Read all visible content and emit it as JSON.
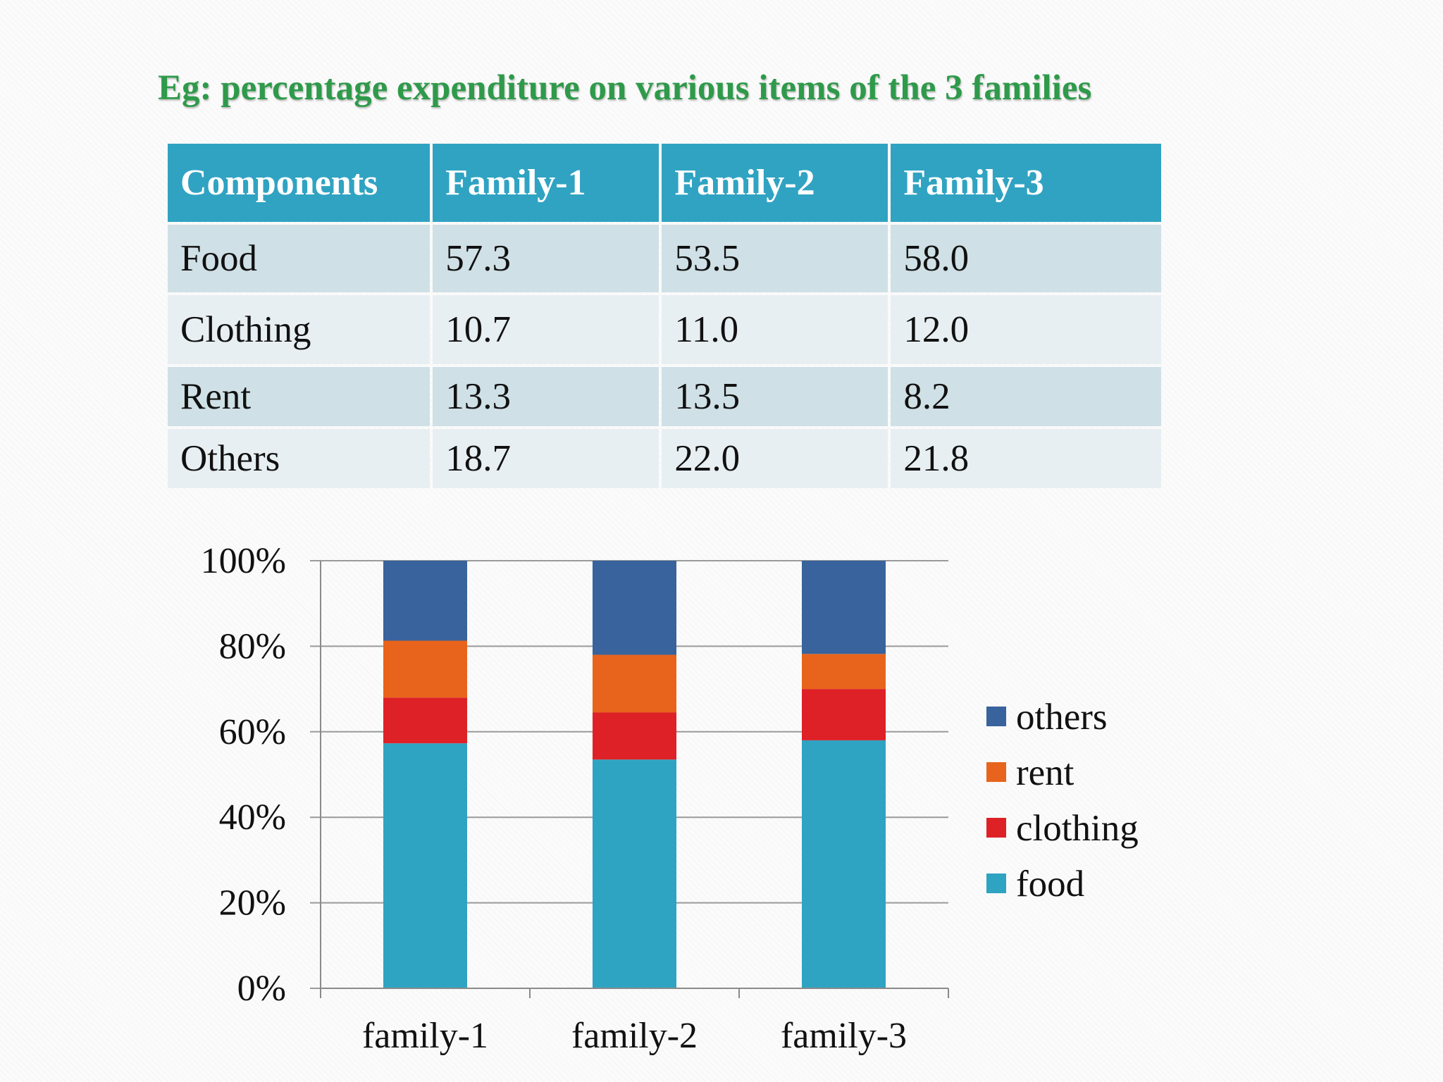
{
  "title": "Eg: percentage expenditure on various items of the 3 families",
  "table": {
    "headers": [
      "Components",
      "Family-1",
      "Family-2",
      "Family-3"
    ],
    "rows": [
      [
        "Food",
        "57.3",
        "53.5",
        "58.0"
      ],
      [
        "Clothing",
        "10.7",
        "11.0",
        "12.0"
      ],
      [
        "Rent",
        "13.3",
        "13.5",
        "8.2"
      ],
      [
        "Others",
        "18.7",
        "22.0",
        "21.8"
      ]
    ]
  },
  "chart_data": {
    "type": "bar",
    "stacked": true,
    "categories": [
      "family-1",
      "family-2",
      "family-3"
    ],
    "series": [
      {
        "name": "food",
        "values": [
          57.3,
          53.5,
          58.0
        ],
        "color": "#2fa3c2"
      },
      {
        "name": "clothing",
        "values": [
          10.7,
          11.0,
          12.0
        ],
        "color": "#dd2127"
      },
      {
        "name": "rent",
        "values": [
          13.3,
          13.5,
          8.2
        ],
        "color": "#e8641c"
      },
      {
        "name": "others",
        "values": [
          18.7,
          22.0,
          21.8
        ],
        "color": "#38639c"
      }
    ],
    "ylim": [
      0,
      100
    ],
    "yticks": [
      "0%",
      "20%",
      "40%",
      "60%",
      "80%",
      "100%"
    ],
    "legend_order": [
      "others",
      "rent",
      "clothing",
      "food"
    ],
    "legend_position": "right",
    "grid": true
  }
}
